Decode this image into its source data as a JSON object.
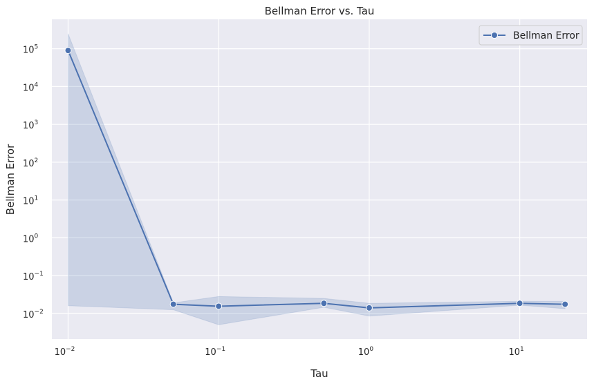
{
  "chart_data": {
    "type": "line",
    "title": "Bellman Error vs. Tau",
    "xlabel": "Tau",
    "ylabel": "Bellman Error",
    "xscale": "log",
    "yscale": "log",
    "xlim": [
      0.0078,
      28
    ],
    "ylim": [
      0.0021,
      600000
    ],
    "x_ticks": [
      {
        "base": "10",
        "exp": "−2",
        "value": 0.01
      },
      {
        "base": "10",
        "exp": "−1",
        "value": 0.1
      },
      {
        "base": "10",
        "exp": "0",
        "value": 1
      },
      {
        "base": "10",
        "exp": "1",
        "value": 10
      }
    ],
    "y_ticks": [
      {
        "base": "10",
        "exp": "−2",
        "value": 0.01
      },
      {
        "base": "10",
        "exp": "−1",
        "value": 0.1
      },
      {
        "base": "10",
        "exp": "0",
        "value": 1
      },
      {
        "base": "10",
        "exp": "1",
        "value": 10
      },
      {
        "base": "10",
        "exp": "2",
        "value": 100
      },
      {
        "base": "10",
        "exp": "3",
        "value": 1000
      },
      {
        "base": "10",
        "exp": "4",
        "value": 10000
      },
      {
        "base": "10",
        "exp": "5",
        "value": 100000
      }
    ],
    "grid": true,
    "legend_position": "top-right",
    "series": [
      {
        "name": "Bellman Error",
        "color": "#4c72b0",
        "x": [
          0.01,
          0.05,
          0.1,
          0.5,
          1,
          10,
          20
        ],
        "y": [
          90000,
          0.0175,
          0.0155,
          0.0185,
          0.014,
          0.0185,
          0.0175
        ],
        "ci_lower": [
          0.016,
          0.0125,
          0.005,
          0.0145,
          0.0085,
          0.0165,
          0.0133
        ],
        "ci_upper": [
          250000,
          0.019,
          0.028,
          0.025,
          0.0185,
          0.021,
          0.021
        ]
      }
    ]
  }
}
